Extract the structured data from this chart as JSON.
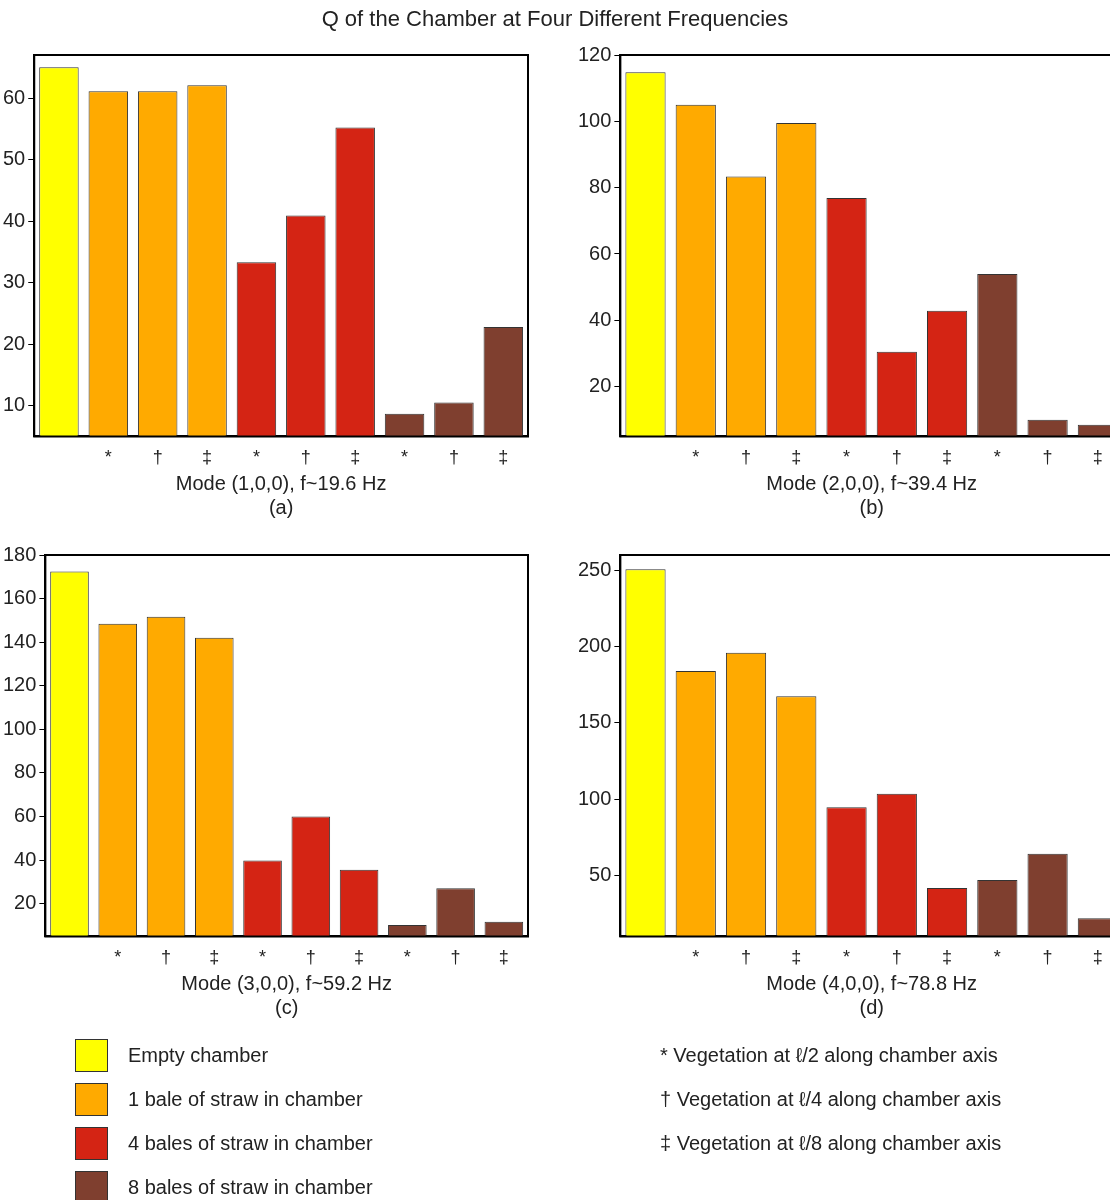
{
  "chart_data": [
    {
      "type": "bar",
      "title": "Q of the Chamber at Four Different Frequencies",
      "xlabel": "Mode (1,0,0), f~19.6 Hz",
      "categories": [
        null,
        "*",
        "†",
        "‡",
        "*",
        "†",
        "‡",
        "*",
        "†",
        "‡"
      ],
      "ylim": [
        5,
        67
      ],
      "yticks": [
        10,
        20,
        30,
        40,
        50,
        60
      ],
      "legend": "bottom",
      "grid": false,
      "series": [
        {
          "name": "Empty chamber",
          "color": "#ffff00",
          "values": [
            65,
            null,
            null,
            null,
            null,
            null,
            null,
            null,
            null,
            null
          ]
        },
        {
          "name": "1 bale of straw in chamber",
          "color": "#ffaa00",
          "values": [
            null,
            61.1,
            61.1,
            62.1,
            null,
            null,
            null,
            null,
            null,
            null
          ]
        },
        {
          "name": "4 bales of straw in chamber",
          "color": "#d42414",
          "values": [
            null,
            null,
            null,
            null,
            33.3,
            40.9,
            55.2,
            null,
            null,
            null
          ]
        },
        {
          "name": "8 bales of straw in chamber",
          "color": "#7f3f2f",
          "values": [
            null,
            null,
            null,
            null,
            null,
            null,
            null,
            8.7,
            10.5,
            22.8
          ]
        }
      ],
      "annotations": [
        "(a)",
        "* Vegetation at ℓ/2 along chamber axis",
        "† Vegetation at ℓ/4 along chamber axis",
        "‡ Vegetation at ℓ/8 along chamber axis"
      ]
    },
    {
      "type": "bar",
      "xlabel": "Mode (2,0,0), f~39.4 Hz",
      "categories": [
        null,
        "*",
        "†",
        "‡",
        "*",
        "†",
        "‡",
        "*",
        "†",
        "‡"
      ],
      "ylim": [
        5,
        120
      ],
      "yticks": [
        20,
        40,
        60,
        80,
        100,
        120
      ],
      "grid": false,
      "series": [
        {
          "color": "#ffff00",
          "values": [
            114.8,
            null,
            null,
            null,
            null,
            null,
            null,
            null,
            null,
            null
          ]
        },
        {
          "color": "#ffaa00",
          "values": [
            null,
            105,
            83.4,
            99.5,
            null,
            null,
            null,
            null,
            null,
            null
          ]
        },
        {
          "color": "#d42414",
          "values": [
            null,
            null,
            null,
            null,
            76.9,
            30.5,
            42.9,
            null,
            null,
            null
          ]
        },
        {
          "color": "#7f3f2f",
          "values": [
            null,
            null,
            null,
            null,
            null,
            null,
            null,
            54,
            10,
            8.5
          ]
        }
      ],
      "annotations": [
        "(b)"
      ]
    },
    {
      "type": "bar",
      "xlabel": "Mode (3,0,0), f~59.2 Hz",
      "categories": [
        null,
        "*",
        "†",
        "‡",
        "*",
        "†",
        "‡",
        "*",
        "†",
        "‡"
      ],
      "ylim": [
        5,
        180
      ],
      "yticks": [
        20,
        40,
        60,
        80,
        100,
        120,
        140,
        160,
        180
      ],
      "grid": false,
      "series": [
        {
          "color": "#ffff00",
          "values": [
            172.4,
            null,
            null,
            null,
            null,
            null,
            null,
            null,
            null,
            null
          ]
        },
        {
          "color": "#ffaa00",
          "values": [
            null,
            148.4,
            151.7,
            142,
            null,
            null,
            null,
            null,
            null,
            null
          ]
        },
        {
          "color": "#d42414",
          "values": [
            null,
            null,
            null,
            null,
            39.8,
            60,
            35.6,
            null,
            null,
            null
          ]
        },
        {
          "color": "#7f3f2f",
          "values": [
            null,
            null,
            null,
            null,
            null,
            null,
            null,
            10.2,
            27.1,
            11.7
          ]
        }
      ],
      "annotations": [
        "(c)"
      ]
    },
    {
      "type": "bar",
      "xlabel": "Mode (4,0,0), f~78.8 Hz",
      "categories": [
        null,
        "*",
        "†",
        "‡",
        "*",
        "†",
        "‡",
        "*",
        "†",
        "‡"
      ],
      "ylim": [
        10,
        260
      ],
      "yticks": [
        50,
        100,
        150,
        200,
        250
      ],
      "grid": false,
      "series": [
        {
          "color": "#ffff00",
          "values": [
            250.7,
            null,
            null,
            null,
            null,
            null,
            null,
            null,
            null,
            null
          ]
        },
        {
          "color": "#ffaa00",
          "values": [
            null,
            183.9,
            195.9,
            167.4,
            null,
            null,
            null,
            null,
            null,
            null
          ]
        },
        {
          "color": "#d42414",
          "values": [
            null,
            null,
            null,
            null,
            94.6,
            103.5,
            41.7,
            null,
            null,
            null
          ]
        },
        {
          "color": "#7f3f2f",
          "values": [
            null,
            null,
            null,
            null,
            null,
            null,
            null,
            46.9,
            64.1,
            21.9
          ]
        }
      ],
      "annotations": [
        "(d)"
      ]
    }
  ]
}
